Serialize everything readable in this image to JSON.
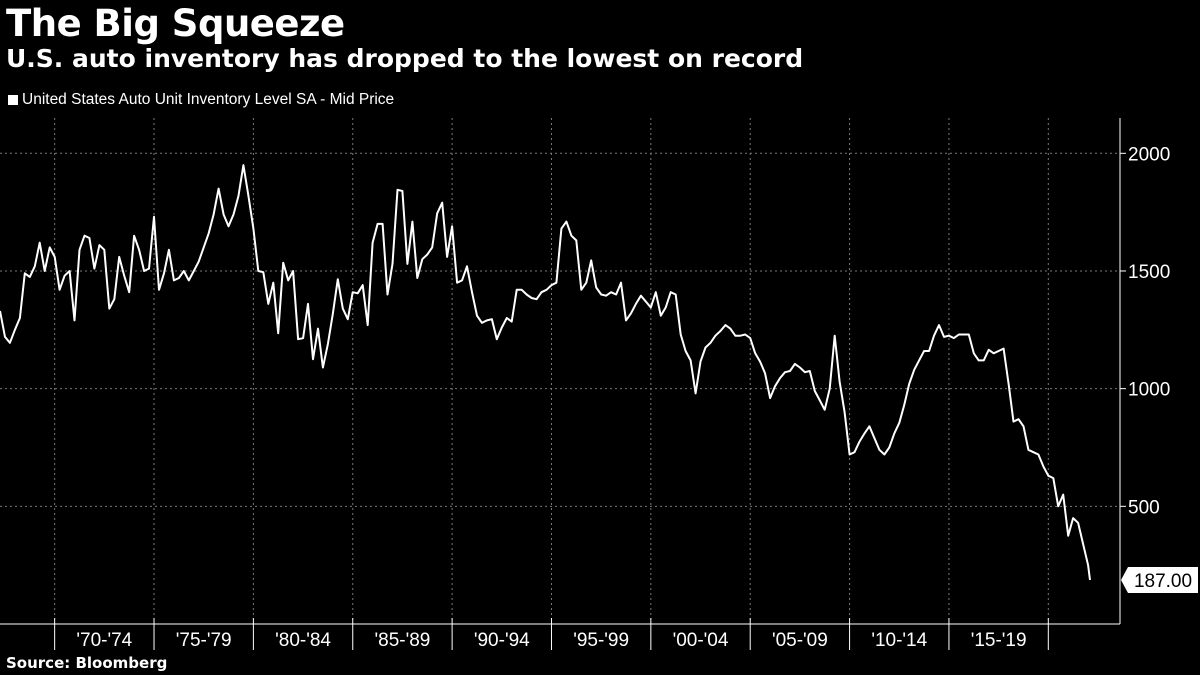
{
  "header": {
    "title": "The Big Squeeze",
    "subtitle": "U.S. auto inventory has dropped to the lowest on record"
  },
  "legend": {
    "label": "United States Auto Unit Inventory Level SA - Mid Price"
  },
  "footer": {
    "source": "Source: Bloomberg"
  },
  "colors": {
    "background": "#000000",
    "line": "#ffffff",
    "grid": "#7a7a7a"
  },
  "chart_data": {
    "type": "line",
    "title": "The Big Squeeze",
    "subtitle": "U.S. auto inventory has dropped to the lowest on record",
    "xlabel": "",
    "ylabel": "",
    "x_range": [
      1967.25,
      2022.4
    ],
    "ylim": [
      0,
      2150
    ],
    "y_ticks": [
      500,
      1000,
      1500,
      2000
    ],
    "x_tick_labels": [
      "'70-'74",
      "'75-'79",
      "'80-'84",
      "'85-'89",
      "'90-'94",
      "'95-'99",
      "'00-'04",
      "'05-'09",
      "'10-'14",
      "'15-'19"
    ],
    "x_tick_starts": [
      1970,
      1975,
      1980,
      1985,
      1990,
      1995,
      2000,
      2005,
      2010,
      2015,
      2020
    ],
    "grid": true,
    "legend_position": "top-left",
    "last_value_label": "187.00",
    "series": [
      {
        "name": "United States Auto Unit Inventory Level SA - Mid Price",
        "points": [
          [
            1967.25,
            1330
          ],
          [
            1967.5,
            1220
          ],
          [
            1967.75,
            1195
          ],
          [
            1968.0,
            1250
          ],
          [
            1968.25,
            1300
          ],
          [
            1968.5,
            1490
          ],
          [
            1968.75,
            1475
          ],
          [
            1969.0,
            1520
          ],
          [
            1969.25,
            1620
          ],
          [
            1969.5,
            1500
          ],
          [
            1969.75,
            1600
          ],
          [
            1970.0,
            1560
          ],
          [
            1970.25,
            1420
          ],
          [
            1970.5,
            1480
          ],
          [
            1970.75,
            1500
          ],
          [
            1971.0,
            1290
          ],
          [
            1971.25,
            1590
          ],
          [
            1971.5,
            1650
          ],
          [
            1971.75,
            1640
          ],
          [
            1972.0,
            1510
          ],
          [
            1972.25,
            1610
          ],
          [
            1972.5,
            1590
          ],
          [
            1972.75,
            1340
          ],
          [
            1973.0,
            1380
          ],
          [
            1973.25,
            1560
          ],
          [
            1973.5,
            1480
          ],
          [
            1973.75,
            1410
          ],
          [
            1974.0,
            1650
          ],
          [
            1974.25,
            1590
          ],
          [
            1974.5,
            1500
          ],
          [
            1974.75,
            1510
          ],
          [
            1975.0,
            1730
          ],
          [
            1975.25,
            1420
          ],
          [
            1975.5,
            1490
          ],
          [
            1975.75,
            1590
          ],
          [
            1976.0,
            1460
          ],
          [
            1976.25,
            1470
          ],
          [
            1976.5,
            1500
          ],
          [
            1976.75,
            1460
          ],
          [
            1977.0,
            1500
          ],
          [
            1977.25,
            1540
          ],
          [
            1977.5,
            1600
          ],
          [
            1977.75,
            1660
          ],
          [
            1978.0,
            1740
          ],
          [
            1978.25,
            1850
          ],
          [
            1978.5,
            1740
          ],
          [
            1978.75,
            1690
          ],
          [
            1979.0,
            1740
          ],
          [
            1979.25,
            1820
          ],
          [
            1979.5,
            1950
          ],
          [
            1979.75,
            1820
          ],
          [
            1980.0,
            1680
          ],
          [
            1980.25,
            1500
          ],
          [
            1980.5,
            1495
          ],
          [
            1980.75,
            1360
          ],
          [
            1981.0,
            1450
          ],
          [
            1981.25,
            1235
          ],
          [
            1981.5,
            1535
          ],
          [
            1981.75,
            1460
          ],
          [
            1982.0,
            1500
          ],
          [
            1982.25,
            1210
          ],
          [
            1982.5,
            1215
          ],
          [
            1982.75,
            1360
          ],
          [
            1983.0,
            1125
          ],
          [
            1983.25,
            1255
          ],
          [
            1983.5,
            1090
          ],
          [
            1983.75,
            1190
          ],
          [
            1984.0,
            1320
          ],
          [
            1984.25,
            1465
          ],
          [
            1984.5,
            1340
          ],
          [
            1984.75,
            1295
          ],
          [
            1985.0,
            1410
          ],
          [
            1985.25,
            1405
          ],
          [
            1985.5,
            1440
          ],
          [
            1985.75,
            1270
          ],
          [
            1986.0,
            1620
          ],
          [
            1986.25,
            1700
          ],
          [
            1986.5,
            1700
          ],
          [
            1986.75,
            1400
          ],
          [
            1987.0,
            1530
          ],
          [
            1987.25,
            1845
          ],
          [
            1987.5,
            1840
          ],
          [
            1987.75,
            1530
          ],
          [
            1988.0,
            1710
          ],
          [
            1988.25,
            1470
          ],
          [
            1988.5,
            1550
          ],
          [
            1988.75,
            1570
          ],
          [
            1989.0,
            1600
          ],
          [
            1989.25,
            1745
          ],
          [
            1989.5,
            1790
          ],
          [
            1989.75,
            1560
          ],
          [
            1990.0,
            1690
          ],
          [
            1990.25,
            1450
          ],
          [
            1990.5,
            1460
          ],
          [
            1990.75,
            1520
          ],
          [
            1991.0,
            1410
          ],
          [
            1991.25,
            1310
          ],
          [
            1991.5,
            1280
          ],
          [
            1991.75,
            1290
          ],
          [
            1992.0,
            1295
          ],
          [
            1992.25,
            1210
          ],
          [
            1992.5,
            1260
          ],
          [
            1992.75,
            1300
          ],
          [
            1993.0,
            1285
          ],
          [
            1993.25,
            1420
          ],
          [
            1993.5,
            1420
          ],
          [
            1993.75,
            1400
          ],
          [
            1994.0,
            1385
          ],
          [
            1994.25,
            1380
          ],
          [
            1994.5,
            1410
          ],
          [
            1994.75,
            1420
          ],
          [
            1995.0,
            1440
          ],
          [
            1995.25,
            1450
          ],
          [
            1995.5,
            1680
          ],
          [
            1995.75,
            1710
          ],
          [
            1996.0,
            1650
          ],
          [
            1996.25,
            1630
          ],
          [
            1996.5,
            1420
          ],
          [
            1996.75,
            1450
          ],
          [
            1997.0,
            1545
          ],
          [
            1997.25,
            1430
          ],
          [
            1997.5,
            1400
          ],
          [
            1997.75,
            1395
          ],
          [
            1998.0,
            1410
          ],
          [
            1998.25,
            1400
          ],
          [
            1998.5,
            1450
          ],
          [
            1998.75,
            1290
          ],
          [
            1999.0,
            1320
          ],
          [
            1999.25,
            1360
          ],
          [
            1999.5,
            1395
          ],
          [
            1999.75,
            1370
          ],
          [
            2000.0,
            1345
          ],
          [
            2000.25,
            1410
          ],
          [
            2000.5,
            1310
          ],
          [
            2000.75,
            1345
          ],
          [
            2001.0,
            1410
          ],
          [
            2001.25,
            1400
          ],
          [
            2001.5,
            1230
          ],
          [
            2001.75,
            1160
          ],
          [
            2002.0,
            1120
          ],
          [
            2002.25,
            980
          ],
          [
            2002.5,
            1115
          ],
          [
            2002.75,
            1175
          ],
          [
            2003.0,
            1195
          ],
          [
            2003.25,
            1225
          ],
          [
            2003.5,
            1245
          ],
          [
            2003.75,
            1270
          ],
          [
            2004.0,
            1255
          ],
          [
            2004.25,
            1225
          ],
          [
            2004.5,
            1225
          ],
          [
            2004.75,
            1230
          ],
          [
            2005.0,
            1215
          ],
          [
            2005.25,
            1150
          ],
          [
            2005.5,
            1115
          ],
          [
            2005.75,
            1065
          ],
          [
            2006.0,
            960
          ],
          [
            2006.25,
            1010
          ],
          [
            2006.5,
            1045
          ],
          [
            2006.75,
            1070
          ],
          [
            2007.0,
            1075
          ],
          [
            2007.25,
            1105
          ],
          [
            2007.5,
            1090
          ],
          [
            2007.75,
            1070
          ],
          [
            2008.0,
            1075
          ],
          [
            2008.25,
            990
          ],
          [
            2008.5,
            950
          ],
          [
            2008.75,
            910
          ],
          [
            2009.0,
            1000
          ],
          [
            2009.25,
            1225
          ],
          [
            2009.5,
            1030
          ],
          [
            2009.75,
            900
          ],
          [
            2010.0,
            720
          ],
          [
            2010.25,
            730
          ],
          [
            2010.5,
            775
          ],
          [
            2010.75,
            810
          ],
          [
            2011.0,
            840
          ],
          [
            2011.25,
            790
          ],
          [
            2011.5,
            740
          ],
          [
            2011.75,
            720
          ],
          [
            2012.0,
            750
          ],
          [
            2012.25,
            810
          ],
          [
            2012.5,
            855
          ],
          [
            2012.75,
            930
          ],
          [
            2013.0,
            1020
          ],
          [
            2013.25,
            1080
          ],
          [
            2013.5,
            1120
          ],
          [
            2013.75,
            1160
          ],
          [
            2014.0,
            1160
          ],
          [
            2014.25,
            1225
          ],
          [
            2014.5,
            1270
          ],
          [
            2014.75,
            1220
          ],
          [
            2015.0,
            1225
          ],
          [
            2015.25,
            1215
          ],
          [
            2015.5,
            1230
          ],
          [
            2015.75,
            1230
          ],
          [
            2016.0,
            1230
          ],
          [
            2016.25,
            1150
          ],
          [
            2016.5,
            1120
          ],
          [
            2016.75,
            1120
          ],
          [
            2017.0,
            1165
          ],
          [
            2017.25,
            1150
          ],
          [
            2017.5,
            1160
          ],
          [
            2017.75,
            1170
          ],
          [
            2018.0,
            1020
          ],
          [
            2018.25,
            860
          ],
          [
            2018.5,
            870
          ],
          [
            2018.75,
            840
          ],
          [
            2019.0,
            740
          ],
          [
            2019.25,
            730
          ],
          [
            2019.5,
            720
          ],
          [
            2019.75,
            670
          ],
          [
            2020.0,
            630
          ],
          [
            2020.25,
            620
          ],
          [
            2020.5,
            500
          ],
          [
            2020.75,
            550
          ],
          [
            2021.0,
            375
          ],
          [
            2021.25,
            450
          ],
          [
            2021.5,
            430
          ],
          [
            2021.75,
            340
          ],
          [
            2022.0,
            250
          ],
          [
            2022.1,
            187
          ]
        ]
      }
    ]
  }
}
